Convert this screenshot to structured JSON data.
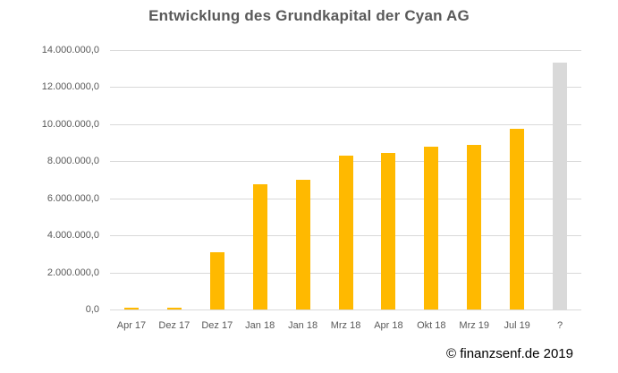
{
  "chart_data": {
    "type": "bar",
    "title": "Entwicklung des Grundkapital der Cyan AG",
    "categories": [
      "Apr 17",
      "Dez 17",
      "Dez 17",
      "Jan 18",
      "Jan 18",
      "Mrz 18",
      "Apr 18",
      "Okt 18",
      "Mrz 19",
      "Jul 19",
      "?"
    ],
    "values": [
      50000,
      50000,
      3100000,
      6750000,
      7000000,
      8300000,
      8450000,
      8770000,
      8870000,
      9750000,
      13300000
    ],
    "bar_colors": [
      "#FFB900",
      "#FFB900",
      "#FFB900",
      "#FFB900",
      "#FFB900",
      "#FFB900",
      "#FFB900",
      "#FFB900",
      "#FFB900",
      "#FFB900",
      "#D9D9D9"
    ],
    "xlabel": "",
    "ylabel": "",
    "ylim": [
      0,
      14000000
    ],
    "grid": true,
    "legend": "none",
    "yticks": [
      {
        "value": 14000000,
        "label": "14.000.000,0"
      },
      {
        "value": 12000000,
        "label": "12.000.000,0"
      },
      {
        "value": 10000000,
        "label": "10.000.000,0"
      },
      {
        "value": 8000000,
        "label": "8.000.000,0"
      },
      {
        "value": 6000000,
        "label": "6.000.000,0"
      },
      {
        "value": 4000000,
        "label": "4.000.000,0"
      },
      {
        "value": 2000000,
        "label": "2.000.000,0"
      },
      {
        "value": 0,
        "label": "0,0"
      }
    ],
    "colors": {
      "accent_bar": "#FFB900",
      "projection_bar": "#D9D9D9",
      "gridline": "#D9D9D9",
      "axis_text": "#595959",
      "title_text": "#595959"
    }
  },
  "footer": {
    "copyright": "© finanzsenf.de 2019"
  }
}
